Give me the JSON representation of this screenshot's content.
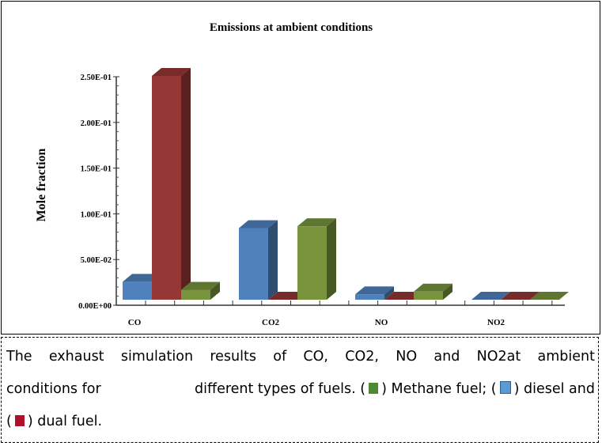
{
  "chart_data": {
    "type": "bar",
    "style": "3d-clustered",
    "title": "Emissions at ambient  conditions",
    "xlabel": "",
    "ylabel": "Mole fraction",
    "categories": [
      "CO",
      "CO2",
      "NO",
      "NO2"
    ],
    "yticks": [
      "0.00E+00",
      "5.00E-02",
      "1.00E-01",
      "1.50E-01",
      "2.00E-01",
      "2.50E-01"
    ],
    "ylim": [
      0,
      0.25
    ],
    "grid": false,
    "legend": "none",
    "series": [
      {
        "key": "diesel",
        "color": "#4f81bd",
        "values": [
          0.02,
          0.08,
          0.006,
          0.0
        ]
      },
      {
        "key": "dual",
        "color": "#953735",
        "values": [
          0.25,
          0.0,
          0.0,
          0.0
        ]
      },
      {
        "key": "methane",
        "color": "#77933c",
        "values": [
          0.011,
          0.082,
          0.009,
          0.0
        ]
      }
    ]
  },
  "caption": {
    "line1": [
      "The",
      "exhaust",
      "simulation",
      "results",
      "of",
      "CO,",
      "CO2,",
      "NO",
      "and",
      "NO2at",
      "ambient"
    ],
    "line2a": "conditions for",
    "line2b": "different types of fuels. (",
    "methane": ") Methane fuel; (",
    "diesel": ") diesel and",
    "line3a": "(",
    "dual": ") dual fuel.",
    "colors": {
      "methane": "#4e8a34",
      "diesel": "#5b9bd5",
      "dual": "#b0102a"
    }
  }
}
